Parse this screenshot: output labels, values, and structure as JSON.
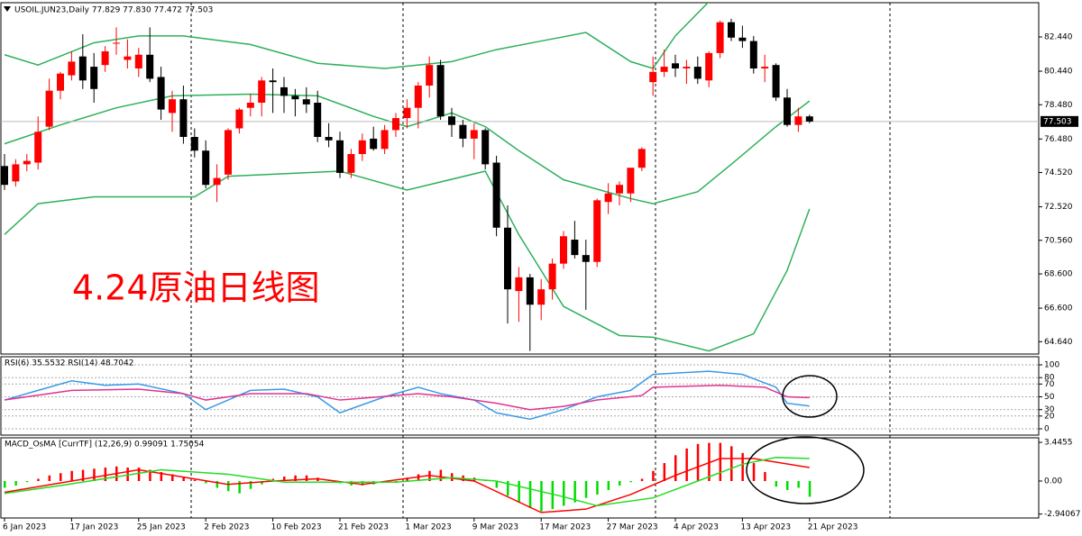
{
  "chart_data": [
    {
      "type": "candlestick",
      "title": "USOIL.JUN23,Daily  77.829 77.830 77.472 77.503",
      "annotation": "4.24原油日线图",
      "annotation_color": "#ff0000",
      "up_color": "#ff0000",
      "down_color": "#000000",
      "candles": [
        [
          74.9,
          75.6,
          73.5,
          73.8
        ],
        [
          74.0,
          75.3,
          73.7,
          75.0
        ],
        [
          75.0,
          75.6,
          74.6,
          75.2
        ],
        [
          75.1,
          77.8,
          74.7,
          76.9
        ],
        [
          77.2,
          80.0,
          77.0,
          79.3
        ],
        [
          79.3,
          80.4,
          78.8,
          80.3
        ],
        [
          80.2,
          81.6,
          79.9,
          81.0
        ],
        [
          81.3,
          82.6,
          79.4,
          79.9
        ],
        [
          80.7,
          81.5,
          78.6,
          79.4
        ],
        [
          80.8,
          81.9,
          80.4,
          81.6
        ],
        [
          82.1,
          83.0,
          81.4,
          82.1
        ],
        [
          81.1,
          82.3,
          80.6,
          81.3
        ],
        [
          80.6,
          81.8,
          80.1,
          81.4
        ],
        [
          81.4,
          83.0,
          79.8,
          80.0
        ],
        [
          80.1,
          80.7,
          77.6,
          78.2
        ],
        [
          78.0,
          79.3,
          76.9,
          78.8
        ],
        [
          78.8,
          79.6,
          76.2,
          76.6
        ],
        [
          76.6,
          77.1,
          75.4,
          75.8
        ],
        [
          75.8,
          76.4,
          73.6,
          73.8
        ],
        [
          73.8,
          75.0,
          72.8,
          74.2
        ],
        [
          74.4,
          77.1,
          74.1,
          77.0
        ],
        [
          77.1,
          78.3,
          76.8,
          78.2
        ],
        [
          78.3,
          79.1,
          77.8,
          78.6
        ],
        [
          78.6,
          80.1,
          77.8,
          79.9
        ],
        [
          79.9,
          80.6,
          78.0,
          79.8
        ],
        [
          79.5,
          80.1,
          78.0,
          79.0
        ],
        [
          79.0,
          79.4,
          77.8,
          78.8
        ],
        [
          78.8,
          79.5,
          78.0,
          78.5
        ],
        [
          78.6,
          79.3,
          76.3,
          76.6
        ],
        [
          76.6,
          77.4,
          76.0,
          76.4
        ],
        [
          76.4,
          76.9,
          74.2,
          74.5
        ],
        [
          74.5,
          75.9,
          74.2,
          75.6
        ],
        [
          75.6,
          76.8,
          75.2,
          76.4
        ],
        [
          76.5,
          77.2,
          75.8,
          75.9
        ],
        [
          75.9,
          77.3,
          75.6,
          77.0
        ],
        [
          77.0,
          78.0,
          76.6,
          77.7
        ],
        [
          77.7,
          78.8,
          77.1,
          78.3
        ],
        [
          78.3,
          79.8,
          77.1,
          79.6
        ],
        [
          79.6,
          81.3,
          78.9,
          80.8
        ],
        [
          80.8,
          81.1,
          77.6,
          77.8
        ],
        [
          77.8,
          78.3,
          76.6,
          77.3
        ],
        [
          77.3,
          77.6,
          76.0,
          76.5
        ],
        [
          76.5,
          77.4,
          75.3,
          77.0
        ],
        [
          77.0,
          77.1,
          74.7,
          75.0
        ],
        [
          75.1,
          75.5,
          70.8,
          71.3
        ],
        [
          71.3,
          72.6,
          65.7,
          67.7
        ],
        [
          67.6,
          69.0,
          65.8,
          68.4
        ],
        [
          68.4,
          68.6,
          64.1,
          66.8
        ],
        [
          66.8,
          68.3,
          65.9,
          67.7
        ],
        [
          67.7,
          69.5,
          67.1,
          69.2
        ],
        [
          69.2,
          71.1,
          68.9,
          70.8
        ],
        [
          70.6,
          71.7,
          69.5,
          69.7
        ],
        [
          69.7,
          70.6,
          66.5,
          69.3
        ],
        [
          69.3,
          73.0,
          69.0,
          72.9
        ],
        [
          72.8,
          73.9,
          72.1,
          73.3
        ],
        [
          73.3,
          74.0,
          72.6,
          73.8
        ],
        [
          73.3,
          74.7,
          72.8,
          74.8
        ],
        [
          74.8,
          76.0,
          74.6,
          75.9
        ],
        [
          79.8,
          81.3,
          79.0,
          80.4
        ],
        [
          80.4,
          81.7,
          80.1,
          80.7
        ],
        [
          80.9,
          81.4,
          80.1,
          80.6
        ],
        [
          80.6,
          81.1,
          79.7,
          80.7
        ],
        [
          80.7,
          81.3,
          79.7,
          80.0
        ],
        [
          79.9,
          81.6,
          79.5,
          81.5
        ],
        [
          81.5,
          83.4,
          81.2,
          83.3
        ],
        [
          83.3,
          83.5,
          82.2,
          82.4
        ],
        [
          82.4,
          83.1,
          81.8,
          82.2
        ],
        [
          82.2,
          82.5,
          80.3,
          80.6
        ],
        [
          80.6,
          81.4,
          79.8,
          80.7
        ],
        [
          80.8,
          80.9,
          78.7,
          78.9
        ],
        [
          78.9,
          79.4,
          77.2,
          77.3
        ],
        [
          77.3,
          78.3,
          76.9,
          77.8
        ],
        [
          77.8,
          77.9,
          77.4,
          77.5
        ]
      ],
      "x_labels": [
        {
          "value": 0,
          "label": "6 Jan 2023"
        },
        {
          "value": 6,
          "label": "17 Jan 2023"
        },
        {
          "value": 12,
          "label": "25 Jan 2023"
        },
        {
          "value": 18,
          "label": "2 Feb 2023"
        },
        {
          "value": 24,
          "label": "10 Feb 2023"
        },
        {
          "value": 30,
          "label": "21 Feb 2023"
        },
        {
          "value": 36,
          "label": "1 Mar 2023"
        },
        {
          "value": 42,
          "label": "9 Mar 2023"
        },
        {
          "value": 48,
          "label": "17 Mar 2023"
        },
        {
          "value": 54,
          "label": "27 Mar 2023"
        },
        {
          "value": 60,
          "label": "4 Apr 2023"
        },
        {
          "value": 66,
          "label": "13 Apr 2023"
        },
        {
          "value": 72,
          "label": "21 Apr 2023"
        }
      ],
      "ylim": [
        63.92,
        84.44
      ],
      "yticks": [
        {
          "value": 82.44,
          "label": "82.440"
        },
        {
          "value": 80.44,
          "label": "80.440"
        },
        {
          "value": 78.48,
          "label": "78.480"
        },
        {
          "value": 76.48,
          "label": "76.480"
        },
        {
          "value": 74.52,
          "label": "74.520"
        },
        {
          "value": 72.52,
          "label": "72.520"
        },
        {
          "value": 70.56,
          "label": "70.560"
        },
        {
          "value": 68.6,
          "label": "68.600"
        },
        {
          "value": 66.6,
          "label": "66.600"
        },
        {
          "value": 64.64,
          "label": "64.640"
        }
      ],
      "current_price": {
        "value": 77.503,
        "label": "77.503"
      },
      "bands": [
        {
          "color": "#2eb05a",
          "x": [
            0,
            5,
            10,
            15,
            22,
            28,
            33,
            36,
            40,
            43,
            46,
            50,
            56,
            58,
            62,
            65,
            69,
            72
          ],
          "values": [
            76.2,
            77.3,
            78.3,
            79.0,
            79.1,
            79.0,
            77.8,
            77.2,
            78.0,
            77.2,
            75.8,
            74.1,
            73.0,
            72.7,
            73.4,
            75.0,
            77.2,
            78.7
          ]
        },
        {
          "color": "#2eb05a",
          "x": [
            0,
            3,
            8,
            12,
            16,
            22,
            28,
            34,
            40,
            44,
            48,
            52,
            56,
            58,
            60,
            63,
            65
          ],
          "values": [
            81.4,
            80.8,
            82.1,
            82.5,
            82.5,
            82.0,
            80.9,
            80.6,
            81.0,
            81.7,
            82.2,
            82.7,
            81.0,
            80.6,
            82.5,
            84.5,
            86.0
          ]
        },
        {
          "color": "#2eb05a",
          "x": [
            0,
            3,
            8,
            17,
            20,
            30,
            36,
            43,
            46,
            50,
            55,
            58,
            63,
            67,
            70,
            72
          ],
          "values": [
            70.9,
            72.7,
            73.1,
            73.1,
            74.3,
            74.6,
            73.5,
            74.6,
            70.9,
            66.7,
            65.0,
            64.9,
            64.1,
            65.1,
            68.8,
            72.4
          ]
        }
      ]
    },
    {
      "type": "line",
      "title": "RSI(6) 35.5532 RSI(14) 48.7042",
      "ylim": [
        0,
        100
      ],
      "yticks": [
        0,
        20,
        30,
        50,
        70,
        80,
        100
      ],
      "series": [
        {
          "color": "#3a9ae8",
          "x": [
            0,
            3,
            6,
            9,
            12,
            16,
            18,
            20,
            22,
            25,
            28,
            30,
            34,
            37,
            39,
            42,
            44,
            47,
            50,
            53,
            56,
            58,
            63,
            66,
            69,
            70,
            72
          ],
          "values": [
            45,
            60,
            75,
            68,
            70,
            55,
            30,
            45,
            60,
            62,
            50,
            25,
            50,
            65,
            55,
            45,
            25,
            15,
            30,
            50,
            60,
            85,
            90,
            85,
            65,
            40,
            35.5532
          ]
        },
        {
          "color": "#e0338f",
          "x": [
            0,
            6,
            12,
            16,
            18,
            22,
            27,
            30,
            37,
            40,
            44,
            47,
            50,
            53,
            57,
            58,
            64,
            68,
            70,
            72
          ],
          "values": [
            45,
            60,
            62,
            55,
            45,
            55,
            55,
            45,
            55,
            50,
            40,
            30,
            35,
            45,
            52,
            65,
            68,
            65,
            50,
            48.7042
          ]
        }
      ]
    },
    {
      "type": "combo",
      "title": "MACD_OsMA [CurrTF] (12,26,9) 0.99091 1.75054",
      "ylim": [
        -3.29,
        3.85
      ],
      "yticks": [
        3.4455,
        {
          "value": 0,
          "label": "0.00"
        },
        -2.94067
      ],
      "positive_color": "#ff0000",
      "negative_color": "#00dd00",
      "histogram": [
        -0.6,
        -0.4,
        -0.1,
        0.2,
        0.5,
        0.7,
        0.9,
        1.0,
        1.1,
        1.2,
        1.3,
        1.2,
        1.2,
        1.0,
        0.8,
        0.6,
        0.4,
        0.1,
        -0.2,
        -0.6,
        -0.9,
        -1.1,
        -0.7,
        -0.3,
        0.2,
        0.4,
        0.5,
        0.5,
        0.3,
        0.1,
        -0.2,
        -0.4,
        -0.4,
        -0.3,
        -0.1,
        -0.1,
        0.3,
        0.6,
        0.9,
        1.0,
        0.7,
        0.5,
        0.3,
        0.1,
        -0.6,
        -1.3,
        -1.9,
        -2.4,
        -2.7,
        -2.5,
        -2.2,
        -1.9,
        -1.5,
        -1.2,
        -0.8,
        -0.4,
        -0.1,
        0.2,
        0.9,
        1.6,
        2.3,
        2.9,
        3.3,
        3.4,
        3.4,
        3.1,
        2.5,
        1.6,
        0.8,
        -0.5,
        -0.8,
        -0.6,
        -1.4
      ],
      "series": [
        {
          "color": "#ff0000",
          "x": [
            0,
            12,
            20,
            24,
            28,
            32,
            38,
            42,
            48,
            52,
            56,
            60,
            64,
            67,
            72
          ],
          "values": [
            -1.0,
            1.0,
            -0.3,
            0.0,
            0.2,
            -0.3,
            0.5,
            0.0,
            -2.8,
            -2.5,
            -1.2,
            0.5,
            2.0,
            2.0,
            1.2
          ]
        },
        {
          "color": "#22dd22",
          "x": [
            0,
            5,
            14,
            20,
            25,
            35,
            40,
            44,
            50,
            53,
            58,
            62,
            66,
            69,
            72
          ],
          "values": [
            -1.1,
            -0.4,
            1.0,
            0.6,
            -0.1,
            -0.1,
            0.3,
            0.0,
            -1.4,
            -2.2,
            -1.5,
            0.0,
            1.5,
            2.1,
            2.0
          ]
        }
      ]
    }
  ]
}
